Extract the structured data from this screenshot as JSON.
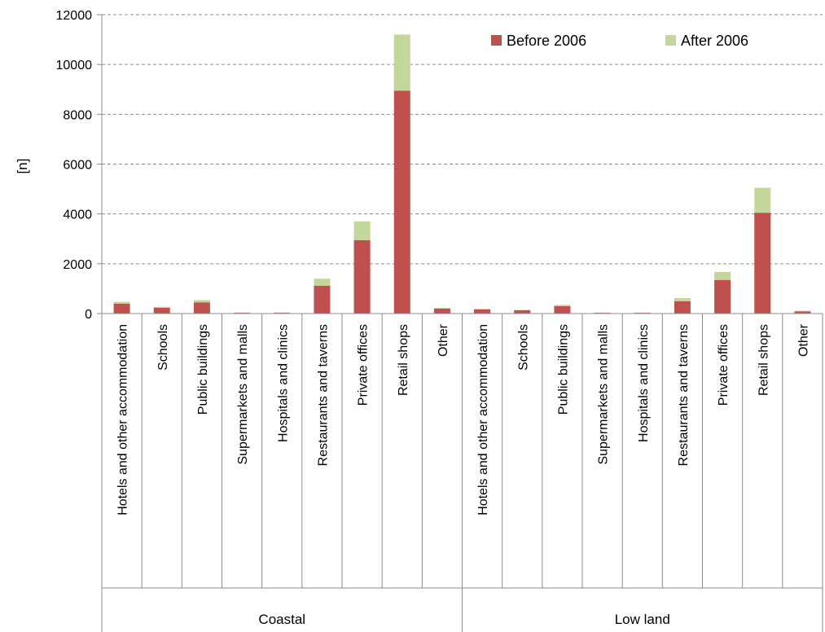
{
  "chart_data": {
    "type": "bar",
    "stacked": true,
    "ylabel": "[n]",
    "ylim": [
      0,
      12000
    ],
    "yticks": [
      0,
      2000,
      4000,
      6000,
      8000,
      10000,
      12000
    ],
    "grid": "horizontal dashed",
    "legend_position": "top-right",
    "groups": [
      {
        "label": "Coastal",
        "categories": [
          "Hotels and other accommodation",
          "Schools",
          "Public buildings",
          "Supermarkets and malls",
          "Hospitals and clinics",
          "Restaurants and taverns",
          "Private offices",
          "Retail shops",
          "Other"
        ]
      },
      {
        "label": "Low land",
        "categories": [
          "Hotels and other accommodation",
          "Schools",
          "Public buildings",
          "Supermarkets and malls",
          "Hospitals and clinics",
          "Restaurants and taverns",
          "Private offices",
          "Retail shops",
          "Other"
        ]
      }
    ],
    "series": [
      {
        "name": "Before 2006",
        "color": "#c0504d",
        "values": [
          400,
          230,
          450,
          30,
          30,
          1120,
          2950,
          8950,
          200,
          170,
          130,
          300,
          30,
          30,
          500,
          1350,
          4050,
          90
        ]
      },
      {
        "name": "After 2006",
        "color": "#c4d79b",
        "values": [
          70,
          40,
          90,
          15,
          15,
          280,
          750,
          2250,
          30,
          20,
          20,
          50,
          10,
          10,
          120,
          320,
          1000,
          20
        ]
      }
    ]
  }
}
